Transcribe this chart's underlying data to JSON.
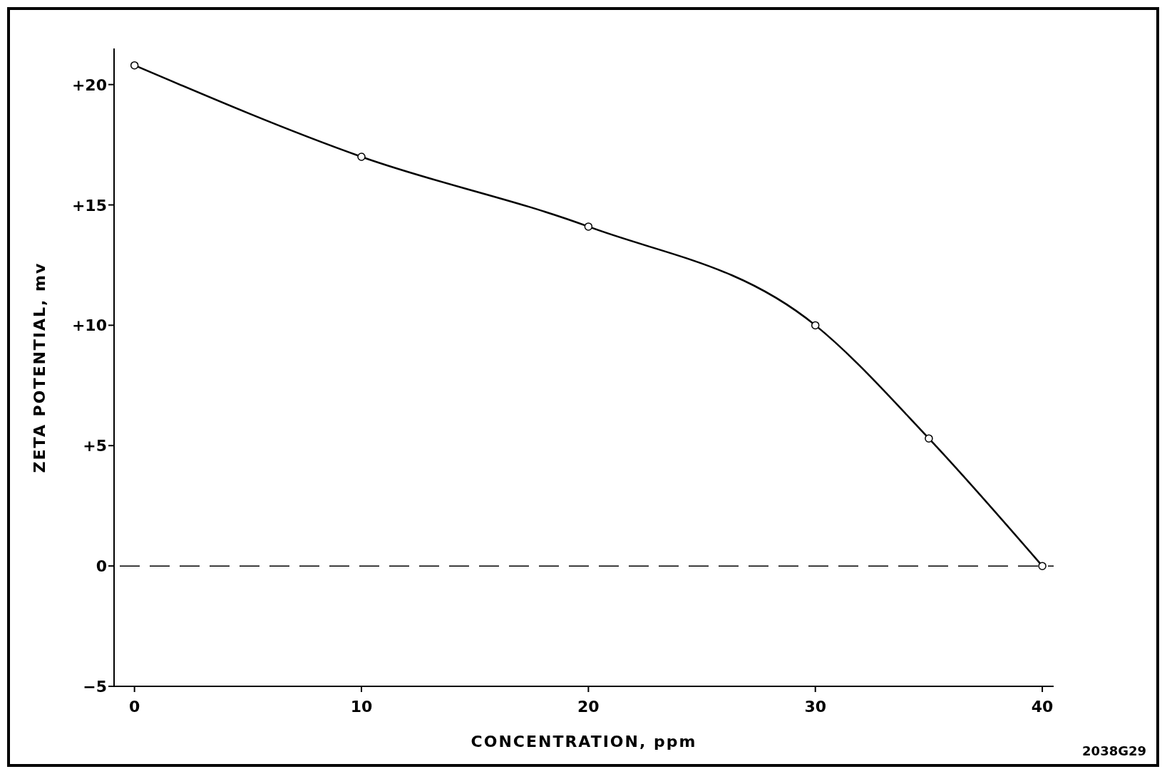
{
  "chart_data": {
    "type": "line",
    "xlabel": "CONCENTRATION, ppm",
    "ylabel": "ZETA POTENTIAL, mv",
    "x": [
      0,
      10,
      20,
      30,
      35,
      40
    ],
    "series": [
      {
        "color": "#000000",
        "values": [
          20.8,
          17.0,
          14.1,
          10.0,
          5.3,
          0
        ]
      }
    ],
    "xlim": [
      -0.9,
      40.5
    ],
    "ylim": [
      -5,
      21.5
    ],
    "xticks": [
      0,
      10,
      20,
      30,
      40
    ],
    "yticks": [
      {
        "value": -5,
        "label": "−5"
      },
      0,
      {
        "value": 5,
        "label": "+5"
      },
      {
        "value": 10,
        "label": "+10"
      },
      {
        "value": 15,
        "label": "+15"
      },
      {
        "value": 20,
        "label": "+20"
      }
    ],
    "ref_lines": [
      {
        "axis": "y",
        "value": 0,
        "line_style": "dashed",
        "color": "#000000"
      }
    ],
    "marker": "circle",
    "line_style": "solid",
    "grid": false,
    "annotations": [
      "2038G29"
    ]
  }
}
